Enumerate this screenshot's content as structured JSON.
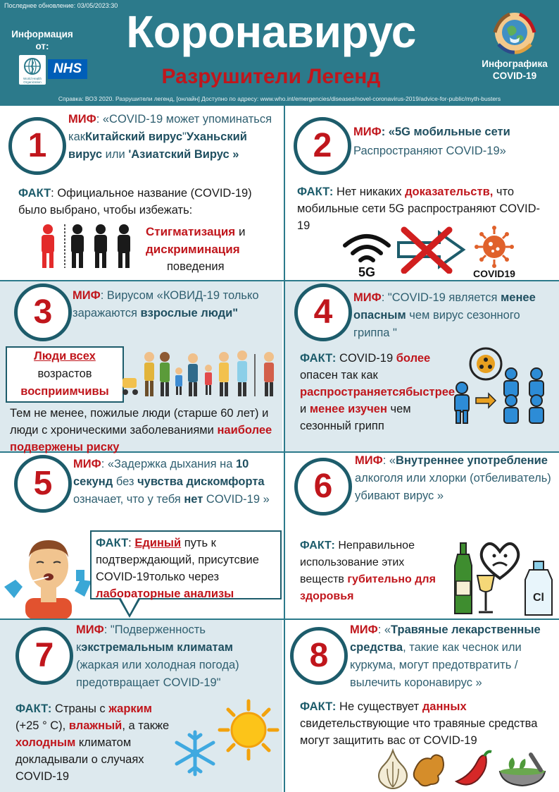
{
  "header": {
    "updated": "Последнее обновление: 03/05/2023:30",
    "info_from": "Информация от:",
    "title": "Коронавирус",
    "subtitle": "Разрушители Легенд",
    "infographic": "Инфографика COVID-19",
    "who_logo_text": "World Health Organization",
    "nhs": "NHS",
    "reference": "Справка: ВОЗ 2020. Разрушители легенд, [онлайн] Доступно по адресу: www.who.int/emergencies/diseases/novel-coronavirus-2019/advice-for-public/myth-busters"
  },
  "colors": {
    "teal": "#2c7a8b",
    "dark_teal": "#1d5c6b",
    "red": "#c0161c",
    "light_bg": "#dde9ee"
  },
  "cards": [
    {
      "number": "1",
      "myth_label": "МИФ",
      "myth_a": ": «COVID-19 может упоминаться как",
      "myth_b": "Китайский вирус",
      "myth_c": "\"",
      "myth_d": "Уханьский вирус",
      "myth_e": " или ",
      "myth_f": "'Азиатский Вирус »",
      "fact_label": "ФАКТ",
      "fact_a": ": Официальное название (COVID-19) было выбрано, чтобы избежать:",
      "fact_r1": "Стигматизация",
      "fact_and": " и ",
      "fact_r2": "дискриминация",
      "fact_b": "поведения",
      "icon": "people-stigma-icon"
    },
    {
      "number": "2",
      "myth_label": "МИФ",
      "myth_a": ": «",
      "myth_b": "5G мобильные сети",
      "myth_c": "Распространяют COVID-19»",
      "fact_label": "ФАКТ:",
      "fact_a": " Нет никаких ",
      "fact_r": "доказательств,",
      "fact_b": " что мобильные сети 5G распространяют COVID-19",
      "label_5g": "5G",
      "label_covid": "COVID19"
    },
    {
      "number": "3",
      "myth_label": "МИФ",
      "myth_a": ": Вирусом «КОВИД-19 только заражаются",
      "myth_b": "взрослые люди\"",
      "box_r1": "Люди всех",
      "box_a": "возрастов",
      "box_r2": "восприимчивы",
      "fact_a": "Тем не менее, пожилые люди (старше 60 лет) и люди с хроническими заболеваниями",
      "fact_r": "наиболее подвержены риску"
    },
    {
      "number": "4",
      "myth_label": "МИФ",
      "myth_a": ": \"COVID-19 является",
      "myth_b": "менее опасным",
      "myth_c": " чем вирус сезонного гриппа \"",
      "fact_label": "ФАКТ:",
      "fact_a": " COVID-19",
      "fact_r1": "более",
      "fact_b": " опасен так как",
      "fact_r2": "распространяетсябыстрее",
      "fact_c": " и ",
      "fact_r3": "менее изучен",
      "fact_d": " чем сезонный грипп"
    },
    {
      "number": "5",
      "myth_label": "МИФ",
      "myth_a": ": «Задержка дыхания на ",
      "myth_b": "10 секунд",
      "myth_c": " без ",
      "myth_d": "чувства дискомфорта",
      "myth_e": " означает, что у тебя ",
      "myth_f": "нет",
      "myth_g": " COVID-19 »",
      "fact_label": "ФАКТ",
      "fact_a": ": ",
      "fact_r1": "Единый",
      "fact_b": " путь к подтверждающий, присутсвие COVID-19только через",
      "fact_r2": "лабораторные анализы"
    },
    {
      "number": "6",
      "myth_label": "МИФ",
      "myth_a": ": «",
      "myth_b": "Внутреннее употребление",
      "myth_c": " алкоголя или хлорки (отбеливатель) убивают вирус »",
      "fact_label": "ФАКТ:",
      "fact_a": " Неправильное использование этих веществ ",
      "fact_r": "губительно для здоровья",
      "cl_label": "Cl"
    },
    {
      "number": "7",
      "myth_label": "МИФ",
      "myth_a": ": \"Подверженность к",
      "myth_b": "экстремальным климатам",
      "myth_c": " (жаркая или холодная погода) предотвращает COVID-19\"",
      "fact_label": "ФАКТ:",
      "fact_a": " Страны с ",
      "fact_r1": "жарким",
      "fact_b": " (+25 ° C), ",
      "fact_r2": "влажный",
      "fact_c": ", а также ",
      "fact_r3": "холодным",
      "fact_d": " климатом докладывали о случаях COVID-19"
    },
    {
      "number": "8",
      "myth_label": "МИФ",
      "myth_a": ": «",
      "myth_b": "Травяные лекарственные средства",
      "myth_c": ", такие как чеснок или куркума, могут предотвратить / вылечить коронавирус »",
      "fact_label": "ФАКТ:",
      "fact_a": " Не существует ",
      "fact_r": "данных",
      "fact_b": " свидетельствующие что травяные средства могут защитить вас от COVID-19"
    }
  ]
}
